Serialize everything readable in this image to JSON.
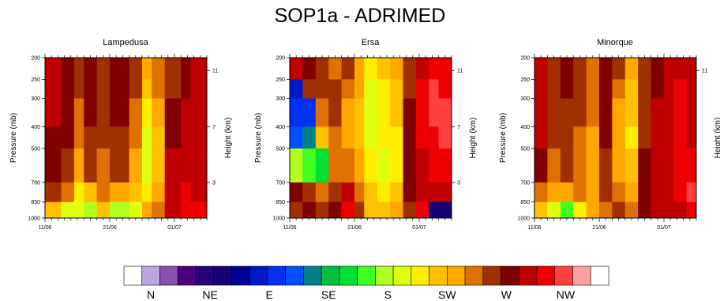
{
  "title": "SOP1a - ADRIMED",
  "chart_data": [
    {
      "type": "heatmap",
      "title": "Lampedusa",
      "ylabel": "Pressure (mb)",
      "y2label": "Height (km)",
      "xticks": [
        "11/06",
        "21/06",
        "01/07"
      ],
      "yticks": [
        "200",
        "250",
        "300",
        "400",
        "500",
        "700",
        "850",
        "1000"
      ],
      "y2ticks": [
        "11",
        "7",
        "3"
      ],
      "bands": [
        {
          "x": 0.0,
          "w": 0.1,
          "profile": [
            22,
            22,
            22,
            21,
            21,
            20,
            17,
            6
          ]
        },
        {
          "x": 0.1,
          "w": 0.08,
          "profile": [
            21,
            21,
            21,
            21,
            20,
            19,
            15,
            5
          ]
        },
        {
          "x": 0.18,
          "w": 0.06,
          "profile": [
            20,
            20,
            19,
            19,
            18,
            16,
            15,
            6
          ]
        },
        {
          "x": 0.24,
          "w": 0.08,
          "profile": [
            21,
            21,
            21,
            20,
            20,
            17,
            14,
            5
          ]
        },
        {
          "x": 0.32,
          "w": 0.08,
          "profile": [
            20,
            20,
            20,
            20,
            19,
            19,
            17,
            6
          ]
        },
        {
          "x": 0.4,
          "w": 0.12,
          "profile": [
            21,
            21,
            21,
            20,
            20,
            18,
            14,
            6
          ]
        },
        {
          "x": 0.52,
          "w": 0.08,
          "profile": [
            20,
            20,
            19,
            19,
            18,
            17,
            15,
            6
          ]
        },
        {
          "x": 0.6,
          "w": 0.06,
          "profile": [
            18,
            17,
            16,
            15,
            15,
            16,
            18,
            20
          ]
        },
        {
          "x": 0.66,
          "w": 0.08,
          "profile": [
            19,
            19,
            18,
            17,
            17,
            18,
            19,
            20
          ]
        },
        {
          "x": 0.74,
          "w": 0.1,
          "profile": [
            20,
            20,
            21,
            21,
            22,
            22,
            22,
            22
          ]
        },
        {
          "x": 0.84,
          "w": 0.06,
          "profile": [
            21,
            21,
            22,
            22,
            22,
            23,
            23,
            23
          ]
        },
        {
          "x": 0.9,
          "w": 0.1,
          "profile": [
            22,
            22,
            22,
            22,
            22,
            22,
            23,
            22
          ]
        }
      ]
    },
    {
      "type": "heatmap",
      "title": "Ersa",
      "ylabel": "Pressure (mb)",
      "y2label": "Height (km)",
      "xticks": [
        "11/06",
        "21/06",
        "01/07"
      ],
      "yticks": [
        "200",
        "250",
        "300",
        "400",
        "500",
        "700",
        "850",
        "1000"
      ],
      "y2ticks": [
        "11",
        "7",
        "3"
      ],
      "bands": [
        {
          "x": 0.0,
          "w": 0.08,
          "profile": [
            22,
            7,
            8,
            9,
            14,
            21,
            20,
            19
          ]
        },
        {
          "x": 0.08,
          "w": 0.08,
          "profile": [
            21,
            20,
            8,
            10,
            13,
            20,
            21,
            20
          ]
        },
        {
          "x": 0.16,
          "w": 0.08,
          "profile": [
            20,
            20,
            19,
            17,
            12,
            19,
            20,
            21
          ]
        },
        {
          "x": 0.24,
          "w": 0.08,
          "profile": [
            19,
            20,
            20,
            19,
            19,
            20,
            21,
            22
          ]
        },
        {
          "x": 0.32,
          "w": 0.08,
          "profile": [
            20,
            19,
            18,
            18,
            19,
            22,
            23,
            24
          ]
        },
        {
          "x": 0.4,
          "w": 0.06,
          "profile": [
            18,
            18,
            17,
            17,
            18,
            19,
            20,
            21
          ]
        },
        {
          "x": 0.46,
          "w": 0.08,
          "profile": [
            16,
            15,
            15,
            15,
            16,
            17,
            17,
            17
          ]
        },
        {
          "x": 0.54,
          "w": 0.08,
          "profile": [
            17,
            16,
            16,
            16,
            15,
            16,
            17,
            17
          ]
        },
        {
          "x": 0.62,
          "w": 0.08,
          "profile": [
            18,
            17,
            17,
            16,
            16,
            17,
            18,
            19
          ]
        },
        {
          "x": 0.7,
          "w": 0.08,
          "profile": [
            20,
            20,
            21,
            21,
            21,
            21,
            20,
            19
          ]
        },
        {
          "x": 0.78,
          "w": 0.08,
          "profile": [
            22,
            23,
            23,
            23,
            22,
            22,
            23,
            24
          ]
        },
        {
          "x": 0.86,
          "w": 0.06,
          "profile": [
            23,
            24,
            24,
            23,
            23,
            22,
            5,
            4
          ]
        },
        {
          "x": 0.92,
          "w": 0.08,
          "profile": [
            23,
            23,
            24,
            24,
            23,
            22,
            5,
            4
          ]
        }
      ]
    },
    {
      "type": "heatmap",
      "title": "Minorque",
      "ylabel": "Pressure (mb)",
      "y2label": "Height (km)",
      "xticks": [
        "11/06",
        "21/06",
        "01/07"
      ],
      "yticks": [
        "200",
        "250",
        "300",
        "400",
        "500",
        "700",
        "850",
        "1000"
      ],
      "y2ticks": [
        "11"
      ],
      "bands": [
        {
          "x": 0.0,
          "w": 0.08,
          "profile": [
            22,
            22,
            22,
            22,
            21,
            19,
            17,
            6
          ]
        },
        {
          "x": 0.08,
          "w": 0.08,
          "profile": [
            20,
            20,
            20,
            20,
            19,
            18,
            15,
            6
          ]
        },
        {
          "x": 0.16,
          "w": 0.08,
          "profile": [
            21,
            21,
            20,
            20,
            20,
            18,
            13,
            7
          ]
        },
        {
          "x": 0.24,
          "w": 0.08,
          "profile": [
            20,
            20,
            20,
            19,
            19,
            19,
            16,
            11
          ]
        },
        {
          "x": 0.32,
          "w": 0.08,
          "profile": [
            19,
            19,
            19,
            18,
            18,
            18,
            18,
            17
          ]
        },
        {
          "x": 0.4,
          "w": 0.08,
          "profile": [
            21,
            21,
            21,
            21,
            20,
            20,
            19,
            19
          ]
        },
        {
          "x": 0.48,
          "w": 0.08,
          "profile": [
            20,
            19,
            18,
            18,
            18,
            19,
            20,
            20
          ]
        },
        {
          "x": 0.56,
          "w": 0.08,
          "profile": [
            18,
            17,
            17,
            16,
            17,
            18,
            19,
            20
          ]
        },
        {
          "x": 0.64,
          "w": 0.08,
          "profile": [
            20,
            20,
            20,
            20,
            21,
            21,
            21,
            6
          ]
        },
        {
          "x": 0.72,
          "w": 0.08,
          "profile": [
            21,
            21,
            22,
            22,
            22,
            22,
            22,
            22
          ]
        },
        {
          "x": 0.8,
          "w": 0.06,
          "profile": [
            22,
            22,
            22,
            22,
            22,
            22,
            22,
            22
          ]
        },
        {
          "x": 0.86,
          "w": 0.08,
          "profile": [
            22,
            23,
            23,
            23,
            23,
            23,
            22,
            6
          ]
        },
        {
          "x": 0.94,
          "w": 0.06,
          "profile": [
            22,
            22,
            22,
            22,
            23,
            24,
            23,
            24
          ]
        }
      ]
    }
  ],
  "colorbar": {
    "colors": [
      "#ffffff",
      "#bba4e0",
      "#8a4fb0",
      "#4e0080",
      "#280077",
      "#150078",
      "#000095",
      "#0018c8",
      "#0030f0",
      "#0050ff",
      "#00808a",
      "#00c040",
      "#00e030",
      "#40ff20",
      "#b0ff20",
      "#e0ff10",
      "#ffee00",
      "#ffc000",
      "#ffa800",
      "#e07000",
      "#a03000",
      "#800000",
      "#c00000",
      "#ee0000",
      "#ff4040",
      "#ffa0a0",
      "#ffffff"
    ],
    "labels": [
      "N",
      "NE",
      "E",
      "SE",
      "S",
      "SW",
      "W",
      "NW"
    ]
  }
}
